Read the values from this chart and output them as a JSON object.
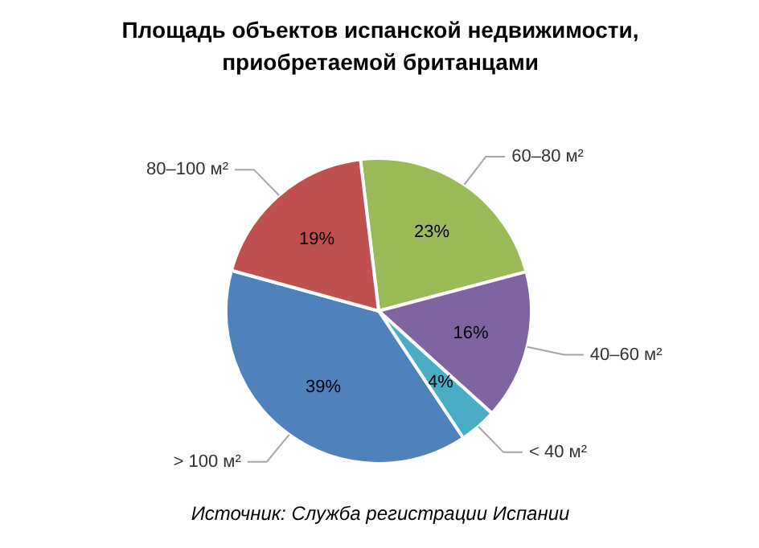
{
  "chart_data": {
    "type": "pie",
    "title": "Площадь объектов испанской недвижимости, приобретаемой британцами",
    "categories": [
      "60–80 м²",
      "40–60 м²",
      "< 40 м²",
      "> 100 м²",
      "80–100 м²"
    ],
    "values": [
      23,
      16,
      4,
      39,
      19
    ],
    "value_labels": [
      "23%",
      "16%",
      "4%",
      "39%",
      "19%"
    ],
    "colors": [
      "#9bbb59",
      "#8064a2",
      "#4bacc6",
      "#4f81bd",
      "#c0504d"
    ],
    "annotations": [
      "Источник: Служба регистрации Испании"
    ]
  }
}
